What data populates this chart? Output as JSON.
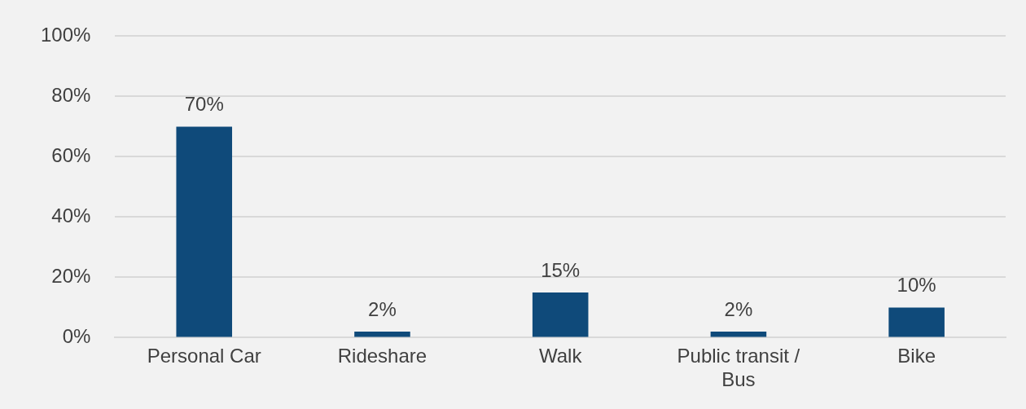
{
  "chart_data": {
    "type": "bar",
    "categories": [
      "Personal Car",
      "Rideshare",
      "Walk",
      "Public transit / Bus",
      "Bike"
    ],
    "values": [
      70,
      2,
      15,
      2,
      10
    ],
    "color": "#0f4a7a",
    "value_labels": [
      "70%",
      "2%",
      "15%",
      "2%",
      "10%"
    ],
    "ylim": [
      0,
      100
    ],
    "yticks": [
      {
        "value": 0,
        "label": "0%"
      },
      {
        "value": 20,
        "label": "20%"
      },
      {
        "value": 40,
        "label": "40%"
      },
      {
        "value": 60,
        "label": "60%"
      },
      {
        "value": 80,
        "label": "80%"
      },
      {
        "value": 100,
        "label": "100%"
      }
    ],
    "grid": "y",
    "legend": false
  }
}
